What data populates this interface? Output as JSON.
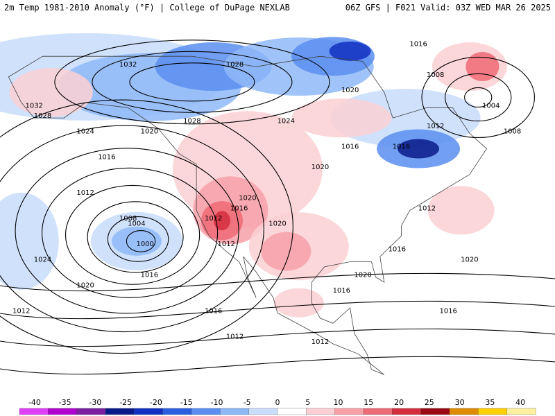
{
  "header": {
    "left": "2m Temp 1981-2010 Anomaly (°F) | College of DuPage NEXLAB",
    "right": "06Z GFS | F021 Valid: 03Z WED MAR 26 2025"
  },
  "colors": {
    "ocean": "#ffffff",
    "contour": "#000000",
    "border": "#404040"
  },
  "isobar_labels": [
    {
      "text": "1032",
      "lon": -162,
      "lat": 60
    },
    {
      "text": "1028",
      "lon": -160,
      "lat": 58
    },
    {
      "text": "1024",
      "lon": -150,
      "lat": 55
    },
    {
      "text": "1020",
      "lon": -135,
      "lat": 55
    },
    {
      "text": "1016",
      "lon": -145,
      "lat": 50
    },
    {
      "text": "1012",
      "lon": -150,
      "lat": 43
    },
    {
      "text": "1008",
      "lon": -140,
      "lat": 38
    },
    {
      "text": "1004",
      "lon": -138,
      "lat": 37
    },
    {
      "text": "1000",
      "lon": -136,
      "lat": 33
    },
    {
      "text": "1024",
      "lon": -160,
      "lat": 30
    },
    {
      "text": "1016",
      "lon": -135,
      "lat": 27
    },
    {
      "text": "1020",
      "lon": -150,
      "lat": 25
    },
    {
      "text": "1016",
      "lon": -120,
      "lat": 20
    },
    {
      "text": "1012",
      "lon": -165,
      "lat": 20
    },
    {
      "text": "1012",
      "lon": -115,
      "lat": 15
    },
    {
      "text": "1012",
      "lon": -95,
      "lat": 14
    },
    {
      "text": "1028",
      "lon": -115,
      "lat": 68
    },
    {
      "text": "1032",
      "lon": -140,
      "lat": 68
    },
    {
      "text": "1028",
      "lon": -125,
      "lat": 57
    },
    {
      "text": "1024",
      "lon": -103,
      "lat": 57
    },
    {
      "text": "1020",
      "lon": -88,
      "lat": 63
    },
    {
      "text": "1016",
      "lon": -88,
      "lat": 52
    },
    {
      "text": "1020",
      "lon": -95,
      "lat": 48
    },
    {
      "text": "1020",
      "lon": -112,
      "lat": 42
    },
    {
      "text": "1016",
      "lon": -114,
      "lat": 40
    },
    {
      "text": "1012",
      "lon": -120,
      "lat": 38
    },
    {
      "text": "1020",
      "lon": -105,
      "lat": 37
    },
    {
      "text": "1012",
      "lon": -117,
      "lat": 33
    },
    {
      "text": "1016",
      "lon": -90,
      "lat": 24
    },
    {
      "text": "1020",
      "lon": -85,
      "lat": 27
    },
    {
      "text": "1016",
      "lon": -77,
      "lat": 32
    },
    {
      "text": "1016",
      "lon": -76,
      "lat": 52
    },
    {
      "text": "1016",
      "lon": -72,
      "lat": 72
    },
    {
      "text": "1008",
      "lon": -68,
      "lat": 66
    },
    {
      "text": "1012",
      "lon": -68,
      "lat": 56
    },
    {
      "text": "1004",
      "lon": -55,
      "lat": 60
    },
    {
      "text": "1008",
      "lon": -50,
      "lat": 55
    },
    {
      "text": "1012",
      "lon": -70,
      "lat": 40
    },
    {
      "text": "1020",
      "lon": -60,
      "lat": 30
    },
    {
      "text": "1016",
      "lon": -65,
      "lat": 20
    }
  ],
  "legend": {
    "ticks": [
      "-40",
      "-35",
      "-30",
      "-25",
      "-20",
      "-15",
      "-10",
      "-5",
      "0",
      "5",
      "10",
      "15",
      "20",
      "25",
      "30",
      "35",
      "40"
    ],
    "colors": [
      "#e040fb",
      "#b000d0",
      "#7a1fa2",
      "#0a1a8a",
      "#1230c0",
      "#2b5fe0",
      "#5a8ef0",
      "#8fb8f8",
      "#c8dcfb",
      "#ffffff",
      "#fbd0d4",
      "#f7a0a8",
      "#ee6a76",
      "#d42e3e",
      "#9a0812",
      "#e08a00",
      "#ffd000",
      "#fff0a0"
    ]
  }
}
